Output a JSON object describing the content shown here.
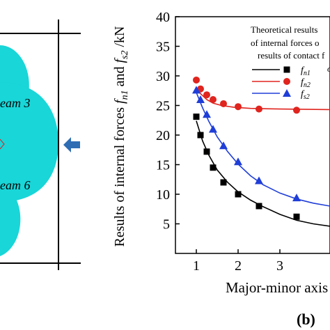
{
  "left_panel": {
    "label_beam3": "eam 3",
    "label_beam6": "eam 6",
    "fill_color": "#19d6d8",
    "arrow_color": "#2e6db4",
    "arrow_icon": "arrow-left-icon"
  },
  "chart_data": {
    "type": "scatter",
    "ylabel": "Results of internal forces f_n1 and f_s2 /kN",
    "ylabel_parts": {
      "pre": "Results of internal forces ",
      "f1": "f",
      "s1": "n1",
      "mid": " and ",
      "f2": "f",
      "s2": "s2",
      "post": " /kN"
    },
    "xlabel": "Major-minor axis",
    "ylim": [
      0,
      40
    ],
    "xlim": [
      0.5,
      4.2
    ],
    "yticks": [
      5,
      10,
      15,
      20,
      25,
      30,
      35,
      40
    ],
    "xticks": [
      1,
      2,
      3
    ],
    "legend_title_lines": [
      "Theoretical  results",
      "of internal forces o",
      "results of contact f"
    ],
    "panel_label": "(b)",
    "series": [
      {
        "name": "f_n1",
        "label_main": "f",
        "label_sub": "n1",
        "color": "#000000",
        "marker": "square",
        "points": [
          [
            1.0,
            23.1
          ],
          [
            1.1,
            20.0
          ],
          [
            1.25,
            17.2
          ],
          [
            1.4,
            14.5
          ],
          [
            1.65,
            12.0
          ],
          [
            2.0,
            10.0
          ],
          [
            2.5,
            8.0
          ],
          [
            3.4,
            6.2
          ]
        ],
        "fit": [
          [
            1.0,
            22.4
          ],
          [
            1.15,
            19.0
          ],
          [
            1.3,
            16.6
          ],
          [
            1.5,
            14.1
          ],
          [
            1.75,
            12.0
          ],
          [
            2.0,
            10.4
          ],
          [
            2.3,
            9.0
          ],
          [
            2.6,
            7.9
          ],
          [
            3.0,
            6.6
          ],
          [
            3.4,
            5.6
          ],
          [
            3.8,
            5.0
          ],
          [
            4.2,
            4.6
          ]
        ]
      },
      {
        "name": "f_n2",
        "label_main": "f",
        "label_sub": "n2",
        "color": "#e0241e",
        "marker": "circle",
        "points": [
          [
            1.0,
            29.3
          ],
          [
            1.1,
            27.8
          ],
          [
            1.25,
            26.8
          ],
          [
            1.4,
            26.0
          ],
          [
            1.65,
            25.3
          ],
          [
            2.0,
            24.8
          ],
          [
            2.5,
            24.4
          ],
          [
            3.4,
            24.2
          ]
        ],
        "fit": [
          [
            1.0,
            28.0
          ],
          [
            1.1,
            27.0
          ],
          [
            1.25,
            26.0
          ],
          [
            1.4,
            25.4
          ],
          [
            1.6,
            25.0
          ],
          [
            1.9,
            24.7
          ],
          [
            2.3,
            24.5
          ],
          [
            3.0,
            24.4
          ],
          [
            4.2,
            24.3
          ]
        ]
      },
      {
        "name": "f_s2",
        "label_main": "f",
        "label_sub": "s2",
        "color": "#1f3ed8",
        "marker": "triangle",
        "points": [
          [
            1.0,
            27.6
          ],
          [
            1.1,
            26.0
          ],
          [
            1.25,
            23.5
          ],
          [
            1.4,
            21.0
          ],
          [
            1.65,
            18.2
          ],
          [
            2.0,
            15.5
          ],
          [
            2.5,
            12.3
          ],
          [
            3.4,
            9.4
          ]
        ],
        "fit": [
          [
            1.0,
            27.2
          ],
          [
            1.15,
            24.6
          ],
          [
            1.3,
            22.3
          ],
          [
            1.5,
            19.7
          ],
          [
            1.75,
            17.2
          ],
          [
            2.0,
            15.1
          ],
          [
            2.3,
            13.1
          ],
          [
            2.6,
            11.6
          ],
          [
            3.0,
            10.2
          ],
          [
            3.4,
            9.2
          ],
          [
            3.8,
            8.5
          ],
          [
            4.2,
            8.0
          ]
        ]
      }
    ],
    "legend_partial_symbol": "o"
  }
}
